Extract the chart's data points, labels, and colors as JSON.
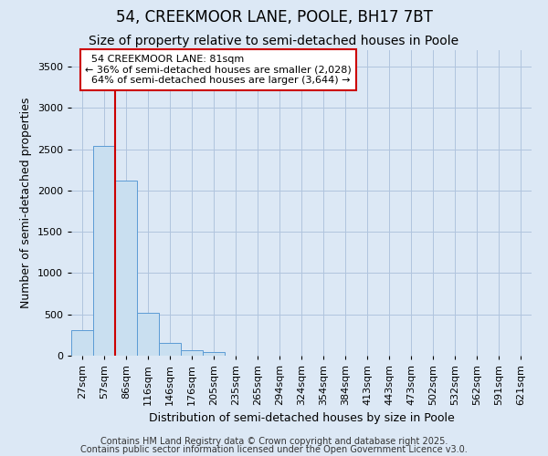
{
  "title": "54, CREEKMOOR LANE, POOLE, BH17 7BT",
  "subtitle": "Size of property relative to semi-detached houses in Poole",
  "xlabel": "Distribution of semi-detached houses by size in Poole",
  "ylabel": "Number of semi-detached properties",
  "categories": [
    "27sqm",
    "57sqm",
    "86sqm",
    "116sqm",
    "146sqm",
    "176sqm",
    "205sqm",
    "235sqm",
    "265sqm",
    "294sqm",
    "324sqm",
    "354sqm",
    "384sqm",
    "413sqm",
    "443sqm",
    "473sqm",
    "502sqm",
    "532sqm",
    "562sqm",
    "591sqm",
    "621sqm"
  ],
  "values": [
    310,
    2540,
    2120,
    520,
    150,
    70,
    40,
    0,
    0,
    0,
    0,
    0,
    0,
    0,
    0,
    0,
    0,
    0,
    0,
    0,
    0
  ],
  "bar_color": "#c9dff0",
  "bar_edge_color": "#5b9bd5",
  "property_line_bin": 1,
  "pct_smaller": 36,
  "pct_larger": 64,
  "count_smaller": "2,028",
  "count_larger": "3,644",
  "property_label": "54 CREEKMOOR LANE: 81sqm",
  "annotation_box_color": "#cc0000",
  "ylim": [
    0,
    3700
  ],
  "yticks": [
    0,
    500,
    1000,
    1500,
    2000,
    2500,
    3000,
    3500
  ],
  "footnote1": "Contains HM Land Registry data © Crown copyright and database right 2025.",
  "footnote2": "Contains public sector information licensed under the Open Government Licence v3.0.",
  "background_color": "#dce8f5",
  "plot_bg_color": "#dce8f5",
  "grid_color": "#b0c4de",
  "title_fontsize": 12,
  "subtitle_fontsize": 10,
  "label_fontsize": 9,
  "tick_fontsize": 8,
  "annot_fontsize": 8,
  "footnote_fontsize": 7
}
